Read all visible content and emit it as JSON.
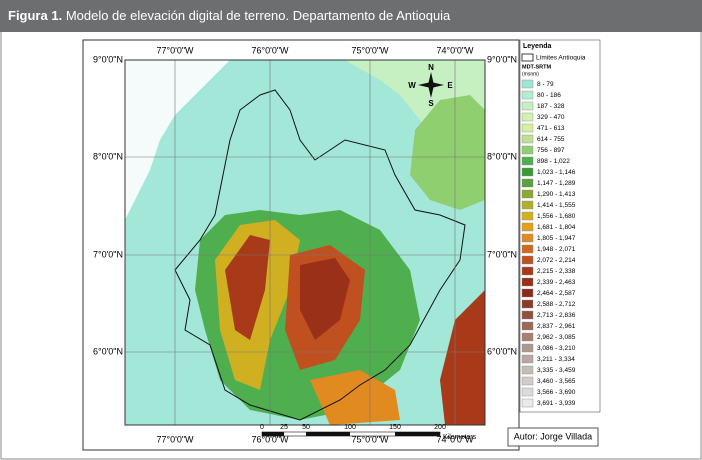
{
  "header": {
    "label": "Figura 1.",
    "title": "Modelo de elevación digital de terreno. Departamento de Antioquia"
  },
  "map": {
    "lon_labels": [
      "77°0'0\"W",
      "76°0'0\"W",
      "75°0'0\"W",
      "74°0'0\"W"
    ],
    "lat_labels": [
      "9°0'0\"N",
      "8°0'0\"N",
      "7°0'0\"N",
      "6°0'0\"N"
    ],
    "compass": {
      "n": "N",
      "s": "S",
      "e": "E",
      "w": "W"
    },
    "scale": {
      "ticks": [
        "0",
        "25",
        "50",
        "100",
        "150",
        "200"
      ],
      "unit": "Kilometers"
    }
  },
  "legend": {
    "title": "Leyenda",
    "boundary": "Límites Antioquia",
    "layer": "MDT-SRTM",
    "unit": "(msnm)",
    "classes": [
      {
        "label": "8 - 79",
        "color": "#a0e6d6"
      },
      {
        "label": "80 - 186",
        "color": "#b3ecd2"
      },
      {
        "label": "187 - 328",
        "color": "#c6f0c2"
      },
      {
        "label": "329 - 470",
        "color": "#d2f2b2"
      },
      {
        "label": "471 - 613",
        "color": "#d8eea2"
      },
      {
        "label": "614 - 755",
        "color": "#bfe090"
      },
      {
        "label": "756 - 897",
        "color": "#8fcf70"
      },
      {
        "label": "898 - 1,022",
        "color": "#4faf4f"
      },
      {
        "label": "1,023 - 1,146",
        "color": "#3a9a3a"
      },
      {
        "label": "1,147 - 1,289",
        "color": "#5aa040"
      },
      {
        "label": "1,290 - 1,413",
        "color": "#8aaa30"
      },
      {
        "label": "1,414 - 1,555",
        "color": "#b0b030"
      },
      {
        "label": "1,556 - 1,680",
        "color": "#d0b020"
      },
      {
        "label": "1,681 - 1,804",
        "color": "#e0a020"
      },
      {
        "label": "1,805 - 1,947",
        "color": "#e08a20"
      },
      {
        "label": "1,948 - 2,071",
        "color": "#d06a20"
      },
      {
        "label": "2,072 - 2,214",
        "color": "#c05020"
      },
      {
        "label": "2,215 - 2,338",
        "color": "#a83a1a"
      },
      {
        "label": "2,339 - 2,463",
        "color": "#9a3018"
      },
      {
        "label": "2,464 - 2,587",
        "color": "#8a2a1a"
      },
      {
        "label": "2,588 - 2,712",
        "color": "#8c3a2a"
      },
      {
        "label": "2,713 - 2,836",
        "color": "#905040"
      },
      {
        "label": "2,837 - 2,961",
        "color": "#9a6858"
      },
      {
        "label": "2,962 - 3,085",
        "color": "#a88070"
      },
      {
        "label": "3,086 - 3,210",
        "color": "#b09890"
      },
      {
        "label": "3,211 - 3,334",
        "color": "#b8a8a4"
      },
      {
        "label": "3,335 - 3,459",
        "color": "#c4bcba"
      },
      {
        "label": "3,460 - 3,565",
        "color": "#d0cccc"
      },
      {
        "label": "3,566 - 3,690",
        "color": "#dcdada"
      },
      {
        "label": "3,691 - 3,939",
        "color": "#eaeaea"
      }
    ]
  },
  "author": "Autor: Jorge Villada"
}
